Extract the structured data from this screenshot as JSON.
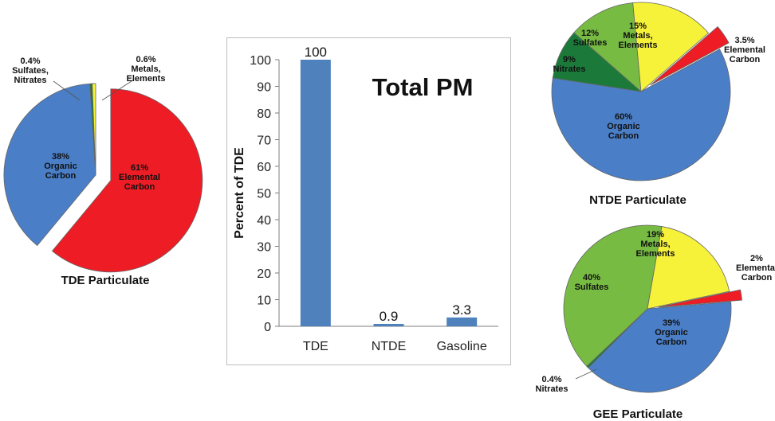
{
  "chart_data": [
    {
      "type": "pie",
      "title": "TDE Particulate",
      "slices": [
        {
          "label": "Elemental\nCarbon",
          "value": 61,
          "value_label": "61%",
          "color": "#ee1c24",
          "exploded": true
        },
        {
          "label": "Organic\nCarbon",
          "value": 38,
          "value_label": "38%",
          "color": "#4a7ec7",
          "exploded": false
        },
        {
          "label": "Sulfates,\nNitrates",
          "value": 0.4,
          "value_label": "0.4%",
          "color": "#1b7a3a",
          "exploded": false
        },
        {
          "label": "Metals,\nElements",
          "value": 0.6,
          "value_label": "0.6%",
          "color": "#f6f23a",
          "exploded": false
        }
      ]
    },
    {
      "type": "bar",
      "title": "Total PM",
      "categories": [
        "TDE",
        "NTDE",
        "Gasoline"
      ],
      "values": [
        100,
        0.9,
        3.3
      ],
      "value_labels": [
        "100",
        "0.9",
        "3.3"
      ],
      "xlabel": "",
      "ylabel": "Percent of TDE",
      "ylim": [
        0,
        100
      ],
      "yticks": [
        "0",
        "10",
        "20",
        "30",
        "40",
        "50",
        "60",
        "70",
        "80",
        "90",
        "100"
      ],
      "color": "#4f81bd"
    },
    {
      "type": "pie",
      "title": "NTDE Particulate",
      "slices": [
        {
          "label": "Elemental\nCarbon",
          "value": 3.5,
          "value_label": "3.5%",
          "color": "#ee1c24",
          "exploded": true
        },
        {
          "label": "Organic\nCarbon",
          "value": 60,
          "value_label": "60%",
          "color": "#4a7ec7",
          "exploded": false
        },
        {
          "label": "Nitrates",
          "value": 9,
          "value_label": "9%",
          "color": "#1b7a3a",
          "exploded": false
        },
        {
          "label": "Sulfates",
          "value": 12,
          "value_label": "12%",
          "color": "#77bb43",
          "exploded": false
        },
        {
          "label": "Metals,\nElements",
          "value": 15,
          "value_label": "15%",
          "color": "#f6f23a",
          "exploded": false
        }
      ]
    },
    {
      "type": "pie",
      "title": "GEE Particulate",
      "slices": [
        {
          "label": "Elemental\nCarbon",
          "value": 2,
          "value_label": "2%",
          "color": "#ee1c24",
          "exploded": true
        },
        {
          "label": "Organic\nCarbon",
          "value": 39,
          "value_label": "39%",
          "color": "#4a7ec7",
          "exploded": false
        },
        {
          "label": "Nitrates",
          "value": 0.4,
          "value_label": "0.4%",
          "color": "#1b7a3a",
          "exploded": false
        },
        {
          "label": "Sulfates",
          "value": 40,
          "value_label": "40%",
          "color": "#77bb43",
          "exploded": false
        },
        {
          "label": "Metals,\nElements",
          "value": 19,
          "value_label": "19%",
          "color": "#f6f23a",
          "exploded": false
        }
      ]
    }
  ]
}
